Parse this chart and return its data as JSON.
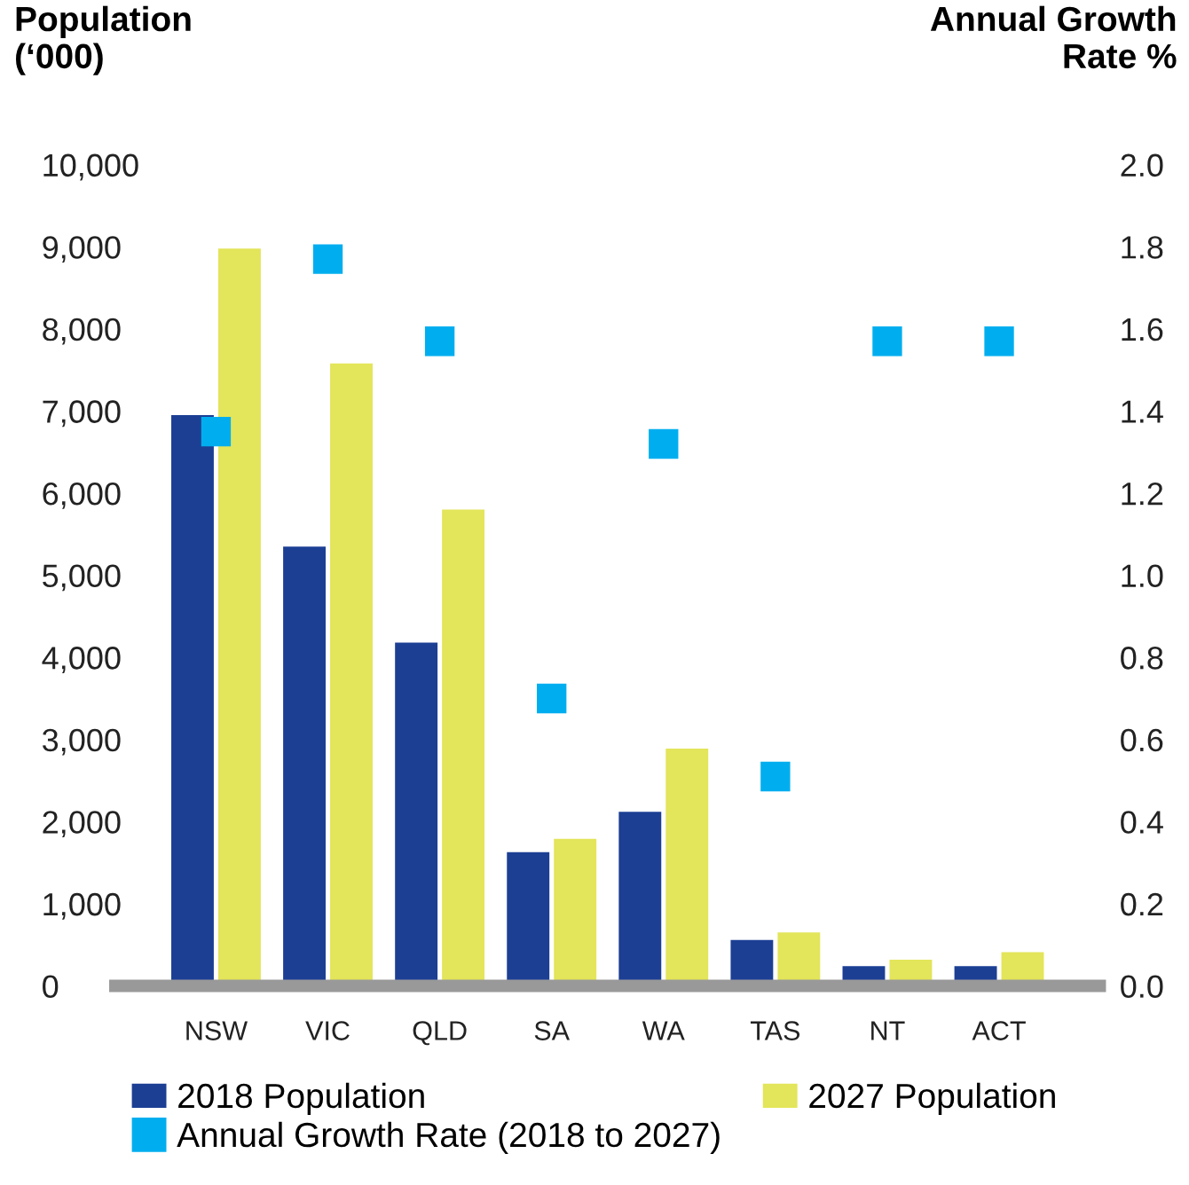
{
  "chart_data": {
    "type": "bar",
    "ylabel": "Population\n(‘000)",
    "y2label": "Annual Growth\nRate %",
    "categories": [
      "NSW",
      "VIC",
      "QLD",
      "SA",
      "WA",
      "TAS",
      "NT",
      "ACT"
    ],
    "series": [
      {
        "name": "2018 Population",
        "color": "#1c3f94",
        "values": [
          6950,
          5350,
          4180,
          1630,
          2120,
          560,
          240,
          240
        ]
      },
      {
        "name": "2027 Population",
        "color": "#e3e55a",
        "values": [
          8980,
          7580,
          5800,
          1790,
          2890,
          650,
          320,
          410
        ]
      },
      {
        "name": "Annual Growth Rate (2018 to 2027)",
        "type": "scatter",
        "axis": "y2",
        "marker": "square",
        "color": "#00aeef",
        "values": [
          1.35,
          1.77,
          1.57,
          0.7,
          1.32,
          0.51,
          1.57,
          1.57
        ]
      }
    ],
    "ylim": [
      0,
      10000
    ],
    "yticks": [
      {
        "value": 0,
        "label": "0"
      },
      {
        "value": 1000,
        "label": "1,000"
      },
      {
        "value": 2000,
        "label": "2,000"
      },
      {
        "value": 3000,
        "label": "3,000"
      },
      {
        "value": 4000,
        "label": "4,000"
      },
      {
        "value": 5000,
        "label": "5,000"
      },
      {
        "value": 6000,
        "label": "6,000"
      },
      {
        "value": 7000,
        "label": "7,000"
      },
      {
        "value": 8000,
        "label": "8,000"
      },
      {
        "value": 9000,
        "label": "9,000"
      },
      {
        "value": 10000,
        "label": "10,000"
      }
    ],
    "y2lim": [
      0,
      2.0
    ],
    "y2ticks": [
      {
        "value": 0,
        "label": "0.0"
      },
      {
        "value": 0.2,
        "label": "0.2"
      },
      {
        "value": 0.4,
        "label": "0.4"
      },
      {
        "value": 0.6,
        "label": "0.6"
      },
      {
        "value": 0.8,
        "label": "0.8"
      },
      {
        "value": 1.0,
        "label": "1.0"
      },
      {
        "value": 1.2,
        "label": "1.2"
      },
      {
        "value": 1.4,
        "label": "1.4"
      },
      {
        "value": 1.6,
        "label": "1.6"
      },
      {
        "value": 1.8,
        "label": "1.8"
      },
      {
        "value": 2.0,
        "label": "2.0"
      }
    ],
    "grid": false,
    "legend": "bottom"
  }
}
